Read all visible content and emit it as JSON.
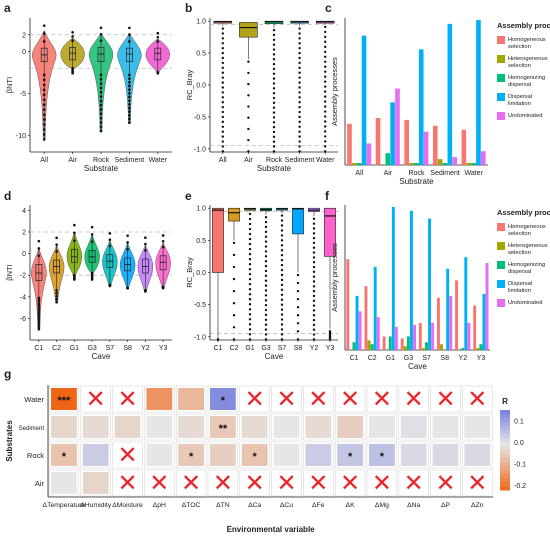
{
  "panel_letters": [
    "a",
    "b",
    "c",
    "d",
    "e",
    "f",
    "g"
  ],
  "colors": {
    "substrate": {
      "All": "#f8766d",
      "Air": "#b5a21a",
      "Rock": "#1fbf77",
      "Sediment": "#27b5e6",
      "Water": "#f25ad1"
    },
    "cave": {
      "C1": "#f8766d",
      "C2": "#d69a1f",
      "G1": "#7cae00",
      "G3": "#00be67",
      "S7": "#00bfc4",
      "S8": "#00a9ff",
      "Y2": "#c77cff",
      "Y3": "#ff61cc"
    },
    "process": {
      "Homogeneous selection": "#f8766d",
      "Heterogeneous selection": "#a3a500",
      "Homogenizing dispersal": "#00bf7d",
      "Dispersal limitation": "#00b0f6",
      "Undominated": "#e76bf3"
    },
    "heat_low": "#ef6415",
    "heat_mid": "#e6e6e6",
    "heat_high": "#7d86dd"
  },
  "chart_data": [
    {
      "id": "a",
      "type": "violin",
      "title": "",
      "xlabel": "Substrate",
      "ylabel": "βNTI",
      "categories": [
        "All",
        "Air",
        "Rock",
        "Sediment",
        "Water"
      ],
      "ylim": [
        -12,
        4
      ],
      "yticks": [
        "2",
        "0",
        "-5",
        "-10"
      ],
      "ytick_values": [
        2,
        0,
        -5,
        -10
      ],
      "reference_lines": [
        2,
        -2
      ],
      "medians": [
        -0.4,
        -0.2,
        -0.3,
        -0.3,
        -0.2
      ],
      "q1": [
        -1.2,
        -1.0,
        -1.2,
        -1.2,
        -1.0
      ],
      "q3": [
        0.4,
        0.5,
        0.5,
        0.4,
        0.4
      ],
      "min": [
        -10.5,
        -2.0,
        -9.5,
        -8.5,
        -2.5
      ],
      "max": [
        2.5,
        1.6,
        2.2,
        2.2,
        1.5
      ]
    },
    {
      "id": "b",
      "type": "box",
      "title": "",
      "xlabel": "Substrate",
      "ylabel": "RC_Bray",
      "categories": [
        "All",
        "Air",
        "Rock",
        "Sediment",
        "Water"
      ],
      "ylim": [
        -1.05,
        1.05
      ],
      "yticks": [
        "1.0",
        "0.5",
        "0.0",
        "-0.5",
        "-1.0"
      ],
      "ytick_values": [
        1,
        0.5,
        0,
        -0.5,
        -1
      ],
      "reference_lines": [
        0.95,
        -0.95
      ],
      "medians": [
        0.99,
        0.9,
        0.99,
        0.99,
        0.99
      ],
      "q1": [
        0.97,
        0.75,
        0.96,
        0.97,
        0.98
      ],
      "q3": [
        1.0,
        0.98,
        1.0,
        1.0,
        1.0
      ]
    },
    {
      "id": "c",
      "type": "bar",
      "title": "",
      "xlabel": "Substrate",
      "ylabel": "Assembly processes",
      "categories": [
        "All",
        "Air",
        "Rock",
        "Sediment",
        "Water"
      ],
      "ylim": [
        0,
        0.75
      ],
      "series": [
        {
          "name": "Homogeneous selection",
          "values": [
            0.21,
            0.24,
            0.23,
            0.2,
            0.18
          ]
        },
        {
          "name": "Heterogeneous selection",
          "values": [
            0.01,
            0.0,
            0.01,
            0.03,
            0.01
          ]
        },
        {
          "name": "Homogenizing dispersal",
          "values": [
            0.01,
            0.06,
            0.01,
            0.01,
            0.01
          ]
        },
        {
          "name": "Dispersal limitation",
          "values": [
            0.66,
            0.32,
            0.59,
            0.72,
            0.74
          ]
        },
        {
          "name": "Undominated",
          "values": [
            0.11,
            0.39,
            0.17,
            0.04,
            0.07
          ]
        }
      ],
      "legend_title": "Assembly processes",
      "legend": "right"
    },
    {
      "id": "d",
      "type": "violin",
      "title": "",
      "xlabel": "Cave",
      "ylabel": "βNTI",
      "categories": [
        "C1",
        "C2",
        "G1",
        "G3",
        "S7",
        "S8",
        "Y2",
        "Y3"
      ],
      "ylim": [
        -8,
        4.5
      ],
      "yticks": [
        "4",
        "2",
        "0",
        "-2",
        "-4",
        "-6"
      ],
      "ytick_values": [
        4,
        2,
        0,
        -2,
        -4,
        -6
      ],
      "reference_lines": [
        2,
        -2
      ],
      "medians": [
        -1.8,
        -1.2,
        -0.3,
        -0.3,
        -0.7,
        -1.0,
        -1.2,
        -0.8
      ],
      "q1": [
        -2.5,
        -1.8,
        -0.8,
        -0.8,
        -1.3,
        -1.6,
        -1.8,
        -1.5
      ],
      "q3": [
        -1.0,
        -0.6,
        0.4,
        0.3,
        -0.1,
        -0.4,
        -0.5,
        -0.2
      ],
      "min": [
        -7.0,
        -4.5,
        -2.0,
        -1.8,
        -3.0,
        -3.2,
        -3.5,
        -3.2
      ],
      "max": [
        0.5,
        0.8,
        2.0,
        1.8,
        1.2,
        1.0,
        0.8,
        1.0
      ]
    },
    {
      "id": "e",
      "type": "box",
      "title": "",
      "xlabel": "Cave",
      "ylabel": "RC_Bray",
      "categories": [
        "C1",
        "C2",
        "G1",
        "G3",
        "S7",
        "S8",
        "Y2",
        "Y3"
      ],
      "ylim": [
        -1.05,
        1.05
      ],
      "yticks": [
        "1.0",
        "0.5",
        "0.0",
        "-0.5",
        "-1.0"
      ],
      "ytick_values": [
        1,
        0.5,
        0,
        -0.5,
        -1
      ],
      "reference_lines": [
        0.95,
        -0.95
      ],
      "medians": [
        0.97,
        0.93,
        0.99,
        0.98,
        0.99,
        0.99,
        0.97,
        0.88
      ],
      "q1": [
        0.0,
        0.8,
        0.98,
        0.96,
        0.97,
        0.6,
        0.95,
        0.25
      ],
      "q3": [
        1.0,
        1.0,
        1.0,
        1.0,
        1.0,
        1.0,
        1.0,
        1.0
      ]
    },
    {
      "id": "f",
      "type": "bar",
      "title": "",
      "xlabel": "Cave",
      "ylabel": "Assembly processes",
      "categories": [
        "C1",
        "C2",
        "G1",
        "G3",
        "S7",
        "S8",
        "Y2",
        "Y3"
      ],
      "ylim": [
        0,
        0.75
      ],
      "series": [
        {
          "name": "Homogeneous selection",
          "values": [
            0.47,
            0.33,
            0.07,
            0.06,
            0.14,
            0.27,
            0.36,
            0.23
          ]
        },
        {
          "name": "Heterogeneous selection",
          "values": [
            0.0,
            0.05,
            0.0,
            0.02,
            0.01,
            0.03,
            0.0,
            0.01
          ]
        },
        {
          "name": "Homogenizing dispersal",
          "values": [
            0.04,
            0.03,
            0.07,
            0.07,
            0.04,
            0.0,
            0.01,
            0.03
          ]
        },
        {
          "name": "Dispersal limitation",
          "values": [
            0.28,
            0.43,
            0.74,
            0.72,
            0.68,
            0.42,
            0.48,
            0.29
          ]
        },
        {
          "name": "Undominated",
          "values": [
            0.2,
            0.17,
            0.12,
            0.13,
            0.14,
            0.28,
            0.14,
            0.45
          ]
        }
      ],
      "legend_title": "Assembly processes",
      "legend": "right"
    },
    {
      "id": "g",
      "type": "heatmap",
      "title": "",
      "xlabel": "Environmental variable",
      "ylabel": "Substrates",
      "rows": [
        "Water",
        "Sediment",
        "Rock",
        "Air"
      ],
      "columns": [
        "ΔTemperature",
        "ΔHumidity",
        "ΔMoisture",
        "ΔpH",
        "ΔTOC",
        "ΔTN",
        "ΔCa",
        "ΔCu",
        "ΔFe",
        "ΔK",
        "ΔMg",
        "ΔNa",
        "ΔP",
        "ΔZn"
      ],
      "values": [
        [
          -0.22,
          null,
          null,
          -0.14,
          -0.08,
          0.14,
          null,
          null,
          null,
          null,
          null,
          null,
          null,
          null
        ],
        [
          -0.03,
          -0.02,
          -0.03,
          0.0,
          -0.02,
          -0.05,
          -0.02,
          0.0,
          -0.02,
          -0.04,
          0.0,
          0.01,
          0.0,
          0.0
        ],
        [
          -0.06,
          0.04,
          null,
          0.0,
          -0.05,
          -0.04,
          -0.06,
          0.0,
          0.04,
          0.05,
          0.06,
          0.02,
          0.02,
          0.02
        ],
        [
          0.0,
          -0.03,
          null,
          null,
          null,
          null,
          null,
          null,
          null,
          null,
          null,
          null,
          null,
          null
        ]
      ],
      "significance": [
        [
          "***",
          "",
          "",
          "",
          "",
          "*",
          "",
          "",
          "",
          "",
          "",
          "",
          "",
          ""
        ],
        [
          "",
          "",
          "",
          "",
          "",
          "**",
          "",
          "",
          "",
          "",
          "",
          "",
          "",
          ""
        ],
        [
          "*",
          "",
          "",
          "",
          "*",
          "",
          "*",
          "",
          "",
          "*",
          "*",
          "",
          "",
          ""
        ],
        [
          "",
          "",
          "",
          "",
          "",
          "",
          "",
          "",
          "",
          "",
          "",
          "",
          "",
          ""
        ]
      ],
      "colorbar_title": "R",
      "colorbar_ticks": [
        "0.1",
        "0.0",
        "-0.1",
        "-0.2"
      ],
      "colorbar_values": [
        0.1,
        0.0,
        -0.1,
        -0.2
      ],
      "crossed_mark": "✕"
    }
  ]
}
